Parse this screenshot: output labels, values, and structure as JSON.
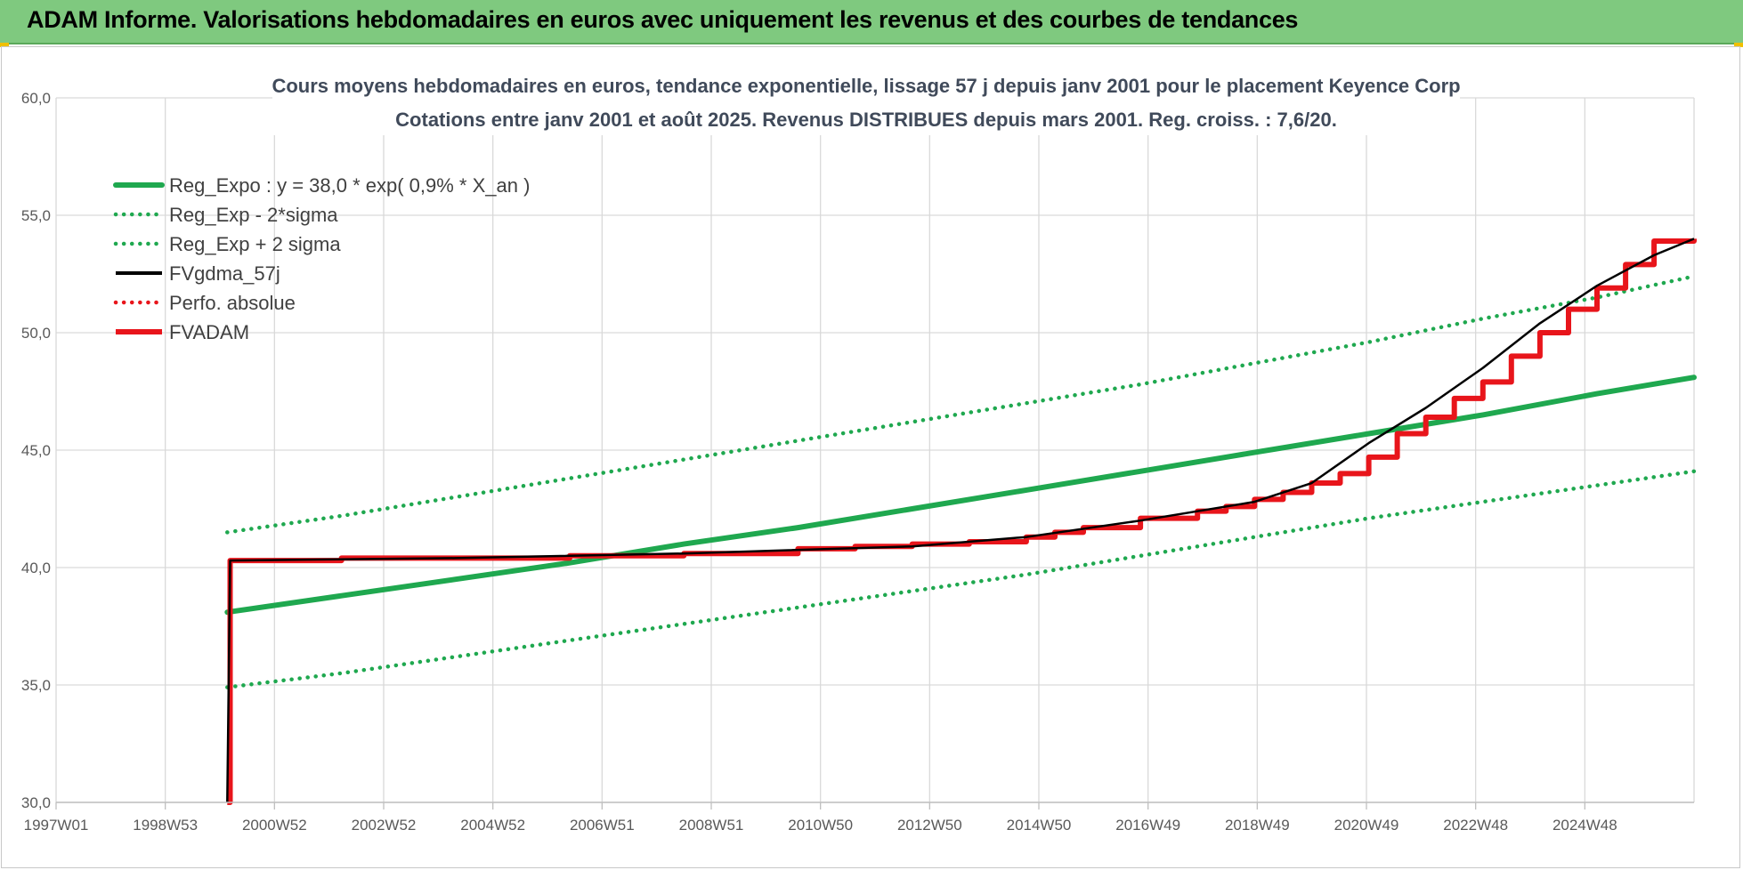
{
  "header": {
    "banner_title": "ADAM Informe. Valorisations hebdomadaires en euros avec uniquement les revenus et des courbes de tendances"
  },
  "colors": {
    "banner": "#7fc97f",
    "reg_green": "#1fa84f",
    "black": "#000000",
    "red": "#e8151b",
    "grid": "#d9d9d9"
  },
  "chart_data": {
    "type": "line",
    "title": "Cours moyens hebdomadaires en euros, tendance exponentielle, lissage 57 j depuis janv 2001 pour le placement Keyence Corp",
    "subtitle": "Cotations entre janv 2001 et août 2025.  Revenus DISTRIBUES depuis mars 2001. Reg. croiss. : 7,6/20.",
    "xlabel": "",
    "ylabel": "",
    "x_ticks": [
      "1997W01",
      "1998W53",
      "2000W52",
      "2002W52",
      "2004W52",
      "2006W51",
      "2008W51",
      "2010W50",
      "2012W50",
      "2014W50",
      "2016W49",
      "2018W49",
      "2020W49",
      "2022W48",
      "2024W48"
    ],
    "xlim": [
      1997.0,
      2025.7
    ],
    "ylim": [
      30,
      60
    ],
    "y_ticks": [
      "30,0",
      "35,0",
      "40,0",
      "45,0",
      "50,0",
      "55,0",
      "60,0"
    ],
    "grid": true,
    "legend_position": "top-left",
    "series": [
      {
        "name": "Reg_Expo : y = 38,0 * exp( 0,9% *  X_an )",
        "style": "solid-thick",
        "color": "#1fa84f",
        "x": [
          2000.0,
          2002.0,
          2004.0,
          2006.0,
          2008.0,
          2010.0,
          2012.0,
          2014.0,
          2016.0,
          2018.0,
          2020.0,
          2022.0,
          2024.0,
          2025.7
        ],
        "y": [
          38.1,
          38.8,
          39.5,
          40.2,
          41.0,
          41.7,
          42.5,
          43.3,
          44.1,
          44.9,
          45.7,
          46.5,
          47.4,
          48.1
        ]
      },
      {
        "name": "Reg_Exp - 2*sigma",
        "style": "dotted",
        "color": "#1fa84f",
        "x": [
          2000.0,
          2002.0,
          2004.0,
          2006.0,
          2008.0,
          2010.0,
          2012.0,
          2014.0,
          2016.0,
          2018.0,
          2020.0,
          2022.0,
          2024.0,
          2025.7
        ],
        "y": [
          34.9,
          35.5,
          36.2,
          36.9,
          37.6,
          38.3,
          39.0,
          39.7,
          40.5,
          41.3,
          42.1,
          42.8,
          43.5,
          44.1
        ]
      },
      {
        "name": "Reg_Exp + 2 sigma",
        "style": "dotted",
        "color": "#1fa84f",
        "x": [
          2000.0,
          2002.0,
          2004.0,
          2006.0,
          2008.0,
          2010.0,
          2012.0,
          2014.0,
          2016.0,
          2018.0,
          2020.0,
          2022.0,
          2024.0,
          2025.7
        ],
        "y": [
          41.5,
          42.2,
          43.0,
          43.8,
          44.6,
          45.4,
          46.2,
          47.0,
          47.8,
          48.7,
          49.6,
          50.6,
          51.5,
          52.4
        ]
      },
      {
        "name": "FVgdma_57j",
        "style": "solid",
        "color": "#000000",
        "x": [
          2000.0,
          2000.05,
          2004.0,
          2008.0,
          2012.0,
          2014.0,
          2016.0,
          2018.0,
          2019.0,
          2020.0,
          2021.0,
          2022.0,
          2023.0,
          2024.0,
          2025.0,
          2025.7
        ],
        "y": [
          30.0,
          40.3,
          40.4,
          40.6,
          40.9,
          41.3,
          42.0,
          42.8,
          43.6,
          45.3,
          46.8,
          48.5,
          50.4,
          52.0,
          53.3,
          54.0
        ]
      },
      {
        "name": "Perfo. absolue",
        "style": "dotted",
        "color": "#e8151b",
        "x": [],
        "y": []
      },
      {
        "name": "FVADAM",
        "style": "step-thick",
        "color": "#e8151b",
        "x": [
          2000.0,
          2000.05,
          2002.0,
          2004.0,
          2006.0,
          2008.0,
          2010.0,
          2011.0,
          2012.0,
          2013.0,
          2014.0,
          2014.5,
          2015.0,
          2016.0,
          2017.0,
          2017.5,
          2018.0,
          2018.5,
          2019.0,
          2019.5,
          2020.0,
          2020.5,
          2021.0,
          2021.5,
          2022.0,
          2022.5,
          2023.0,
          2023.5,
          2024.0,
          2024.5,
          2025.0,
          2025.7
        ],
        "y": [
          30.0,
          40.3,
          40.4,
          40.4,
          40.5,
          40.6,
          40.8,
          40.9,
          41.0,
          41.1,
          41.3,
          41.5,
          41.7,
          42.1,
          42.4,
          42.6,
          42.9,
          43.2,
          43.6,
          44.0,
          44.7,
          45.7,
          46.4,
          47.2,
          47.9,
          49.0,
          50.0,
          51.0,
          51.9,
          52.9,
          53.9,
          54.0
        ]
      }
    ]
  }
}
